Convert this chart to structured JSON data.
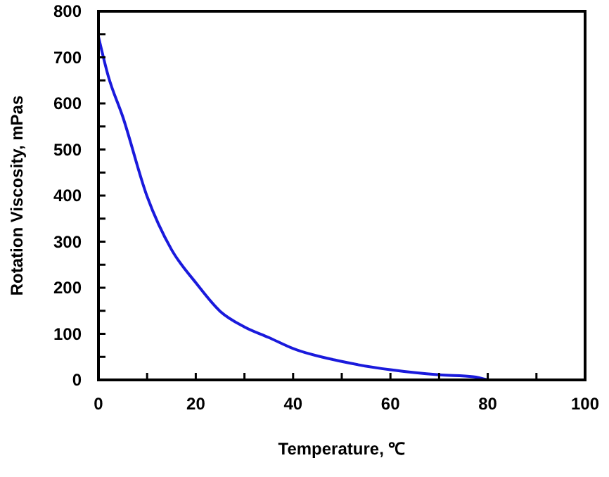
{
  "chart_data": {
    "type": "line",
    "xlabel": "Temperature, ℃",
    "ylabel": "Rotation Viscosity, mPas",
    "x": [
      0,
      2,
      5,
      10,
      15,
      20,
      25,
      30,
      35,
      40,
      50,
      60,
      70,
      77,
      80
    ],
    "series": [
      {
        "color": "#1a1adc",
        "values": [
          745,
          660,
          571,
          398,
          283,
          211,
          149,
          115,
          92,
          68,
          40,
          22,
          11,
          7,
          0
        ]
      }
    ],
    "xlim": [
      0,
      100
    ],
    "ylim": [
      0,
      800
    ],
    "xticks": [
      0,
      {
        "value": 10,
        "label": null
      },
      20,
      {
        "value": 30,
        "label": null
      },
      40,
      {
        "value": 50,
        "label": null
      },
      60,
      {
        "value": 70,
        "label": null
      },
      80,
      {
        "value": 90,
        "label": null
      },
      100
    ],
    "yticks": [
      0,
      {
        "value": 50,
        "label": null
      },
      100,
      {
        "value": 150,
        "label": null
      },
      200,
      {
        "value": 250,
        "label": null
      },
      300,
      {
        "value": 350,
        "label": null
      },
      400,
      {
        "value": 450,
        "label": null
      },
      500,
      {
        "value": 550,
        "label": null
      },
      600,
      {
        "value": 650,
        "label": null
      },
      700,
      {
        "value": 750,
        "label": null
      },
      800
    ],
    "grid": false,
    "marker": "none",
    "line_style": "solid"
  }
}
